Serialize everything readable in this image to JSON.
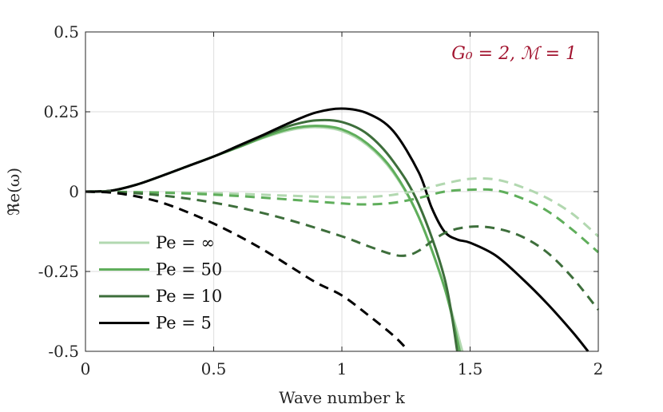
{
  "chart_data": {
    "type": "line",
    "title": "",
    "xlabel": "Wave number k",
    "ylabel": "ℜe(ω)",
    "xlim": [
      0,
      2
    ],
    "ylim": [
      -0.5,
      0.5
    ],
    "xticks": [
      0,
      0.5,
      1,
      1.5,
      2
    ],
    "xtick_labels": [
      "0",
      "0.5",
      "1",
      "1.5",
      "2"
    ],
    "yticks": [
      -0.5,
      -0.25,
      0,
      0.25,
      0.5
    ],
    "ytick_labels": [
      "-0.5",
      "-0.25",
      "0",
      "0.25",
      "0.5"
    ],
    "grid": true,
    "legend_position": "bottom-left",
    "annotation": "G₀ = 2, ℳ = 1",
    "annotation_color": "#a2142f",
    "series": [
      {
        "name": "Pe = ∞",
        "color": "#b2d8b0",
        "style": "solid",
        "x": [
          0,
          0.1,
          0.2,
          0.3,
          0.4,
          0.5,
          0.6,
          0.7,
          0.8,
          0.9,
          1.0,
          1.1,
          1.2,
          1.3,
          1.4,
          1.47
        ],
        "y": [
          0,
          0.003,
          0.022,
          0.05,
          0.08,
          0.11,
          0.14,
          0.17,
          0.193,
          0.202,
          0.19,
          0.145,
          0.06,
          -0.08,
          -0.3,
          -0.5
        ]
      },
      {
        "name": "Pe = 50",
        "color": "#5fae5b",
        "style": "solid",
        "x": [
          0,
          0.1,
          0.2,
          0.3,
          0.4,
          0.5,
          0.6,
          0.7,
          0.8,
          0.9,
          1.0,
          1.1,
          1.2,
          1.3,
          1.4,
          1.46
        ],
        "y": [
          0,
          0.003,
          0.022,
          0.05,
          0.08,
          0.11,
          0.14,
          0.172,
          0.197,
          0.206,
          0.195,
          0.15,
          0.065,
          -0.08,
          -0.3,
          -0.5
        ]
      },
      {
        "name": "Pe = 10",
        "color": "#3d6e3b",
        "style": "solid",
        "x": [
          0,
          0.1,
          0.2,
          0.3,
          0.4,
          0.5,
          0.6,
          0.7,
          0.8,
          0.9,
          1.0,
          1.1,
          1.2,
          1.3,
          1.4,
          1.45
        ],
        "y": [
          0,
          0.003,
          0.022,
          0.05,
          0.08,
          0.11,
          0.142,
          0.177,
          0.207,
          0.223,
          0.218,
          0.18,
          0.095,
          -0.04,
          -0.27,
          -0.5
        ]
      },
      {
        "name": "Pe = 5",
        "color": "#000000",
        "style": "solid",
        "x": [
          0,
          0.1,
          0.2,
          0.3,
          0.4,
          0.5,
          0.6,
          0.7,
          0.8,
          0.9,
          1.0,
          1.1,
          1.2,
          1.3,
          1.35,
          1.4,
          1.45,
          1.5,
          1.6,
          1.7,
          1.8,
          1.9,
          1.96
        ],
        "y": [
          0,
          0.003,
          0.022,
          0.05,
          0.08,
          0.11,
          0.145,
          0.18,
          0.217,
          0.248,
          0.26,
          0.245,
          0.19,
          0.06,
          -0.05,
          -0.125,
          -0.15,
          -0.16,
          -0.2,
          -0.27,
          -0.35,
          -0.44,
          -0.5
        ]
      },
      {
        "name": "",
        "color": "#b2d8b0",
        "style": "dashed",
        "x": [
          0,
          0.2,
          0.4,
          0.6,
          0.8,
          1.0,
          1.1,
          1.2,
          1.3,
          1.4,
          1.5,
          1.6,
          1.7,
          1.8,
          1.9,
          2.0
        ],
        "y": [
          0,
          -0.001,
          -0.003,
          -0.007,
          -0.013,
          -0.018,
          -0.017,
          -0.01,
          0.005,
          0.025,
          0.04,
          0.038,
          0.015,
          -0.02,
          -0.07,
          -0.14
        ]
      },
      {
        "name": "",
        "color": "#5fae5b",
        "style": "dashed",
        "x": [
          0,
          0.2,
          0.4,
          0.6,
          0.8,
          1.0,
          1.1,
          1.2,
          1.3,
          1.4,
          1.5,
          1.6,
          1.7,
          1.8,
          1.9,
          2.0
        ],
        "y": [
          0,
          -0.002,
          -0.006,
          -0.014,
          -0.025,
          -0.037,
          -0.04,
          -0.035,
          -0.02,
          0,
          0.006,
          0.004,
          -0.02,
          -0.06,
          -0.12,
          -0.19
        ]
      },
      {
        "name": "",
        "color": "#3d6e3b",
        "style": "dashed",
        "x": [
          0,
          0.2,
          0.4,
          0.6,
          0.8,
          1.0,
          1.1,
          1.2,
          1.25,
          1.3,
          1.4,
          1.5,
          1.6,
          1.7,
          1.8,
          1.9,
          2.0
        ],
        "y": [
          0,
          -0.005,
          -0.022,
          -0.05,
          -0.09,
          -0.14,
          -0.17,
          -0.197,
          -0.2,
          -0.185,
          -0.13,
          -0.11,
          -0.115,
          -0.14,
          -0.19,
          -0.27,
          -0.37
        ]
      },
      {
        "name": "",
        "color": "#000000",
        "style": "dashed",
        "x": [
          0,
          0.1,
          0.2,
          0.3,
          0.4,
          0.5,
          0.6,
          0.7,
          0.8,
          0.9,
          1.0,
          1.1,
          1.2,
          1.25
        ],
        "y": [
          0,
          -0.003,
          -0.015,
          -0.035,
          -0.065,
          -0.1,
          -0.14,
          -0.185,
          -0.235,
          -0.285,
          -0.325,
          -0.385,
          -0.45,
          -0.49
        ]
      }
    ]
  }
}
